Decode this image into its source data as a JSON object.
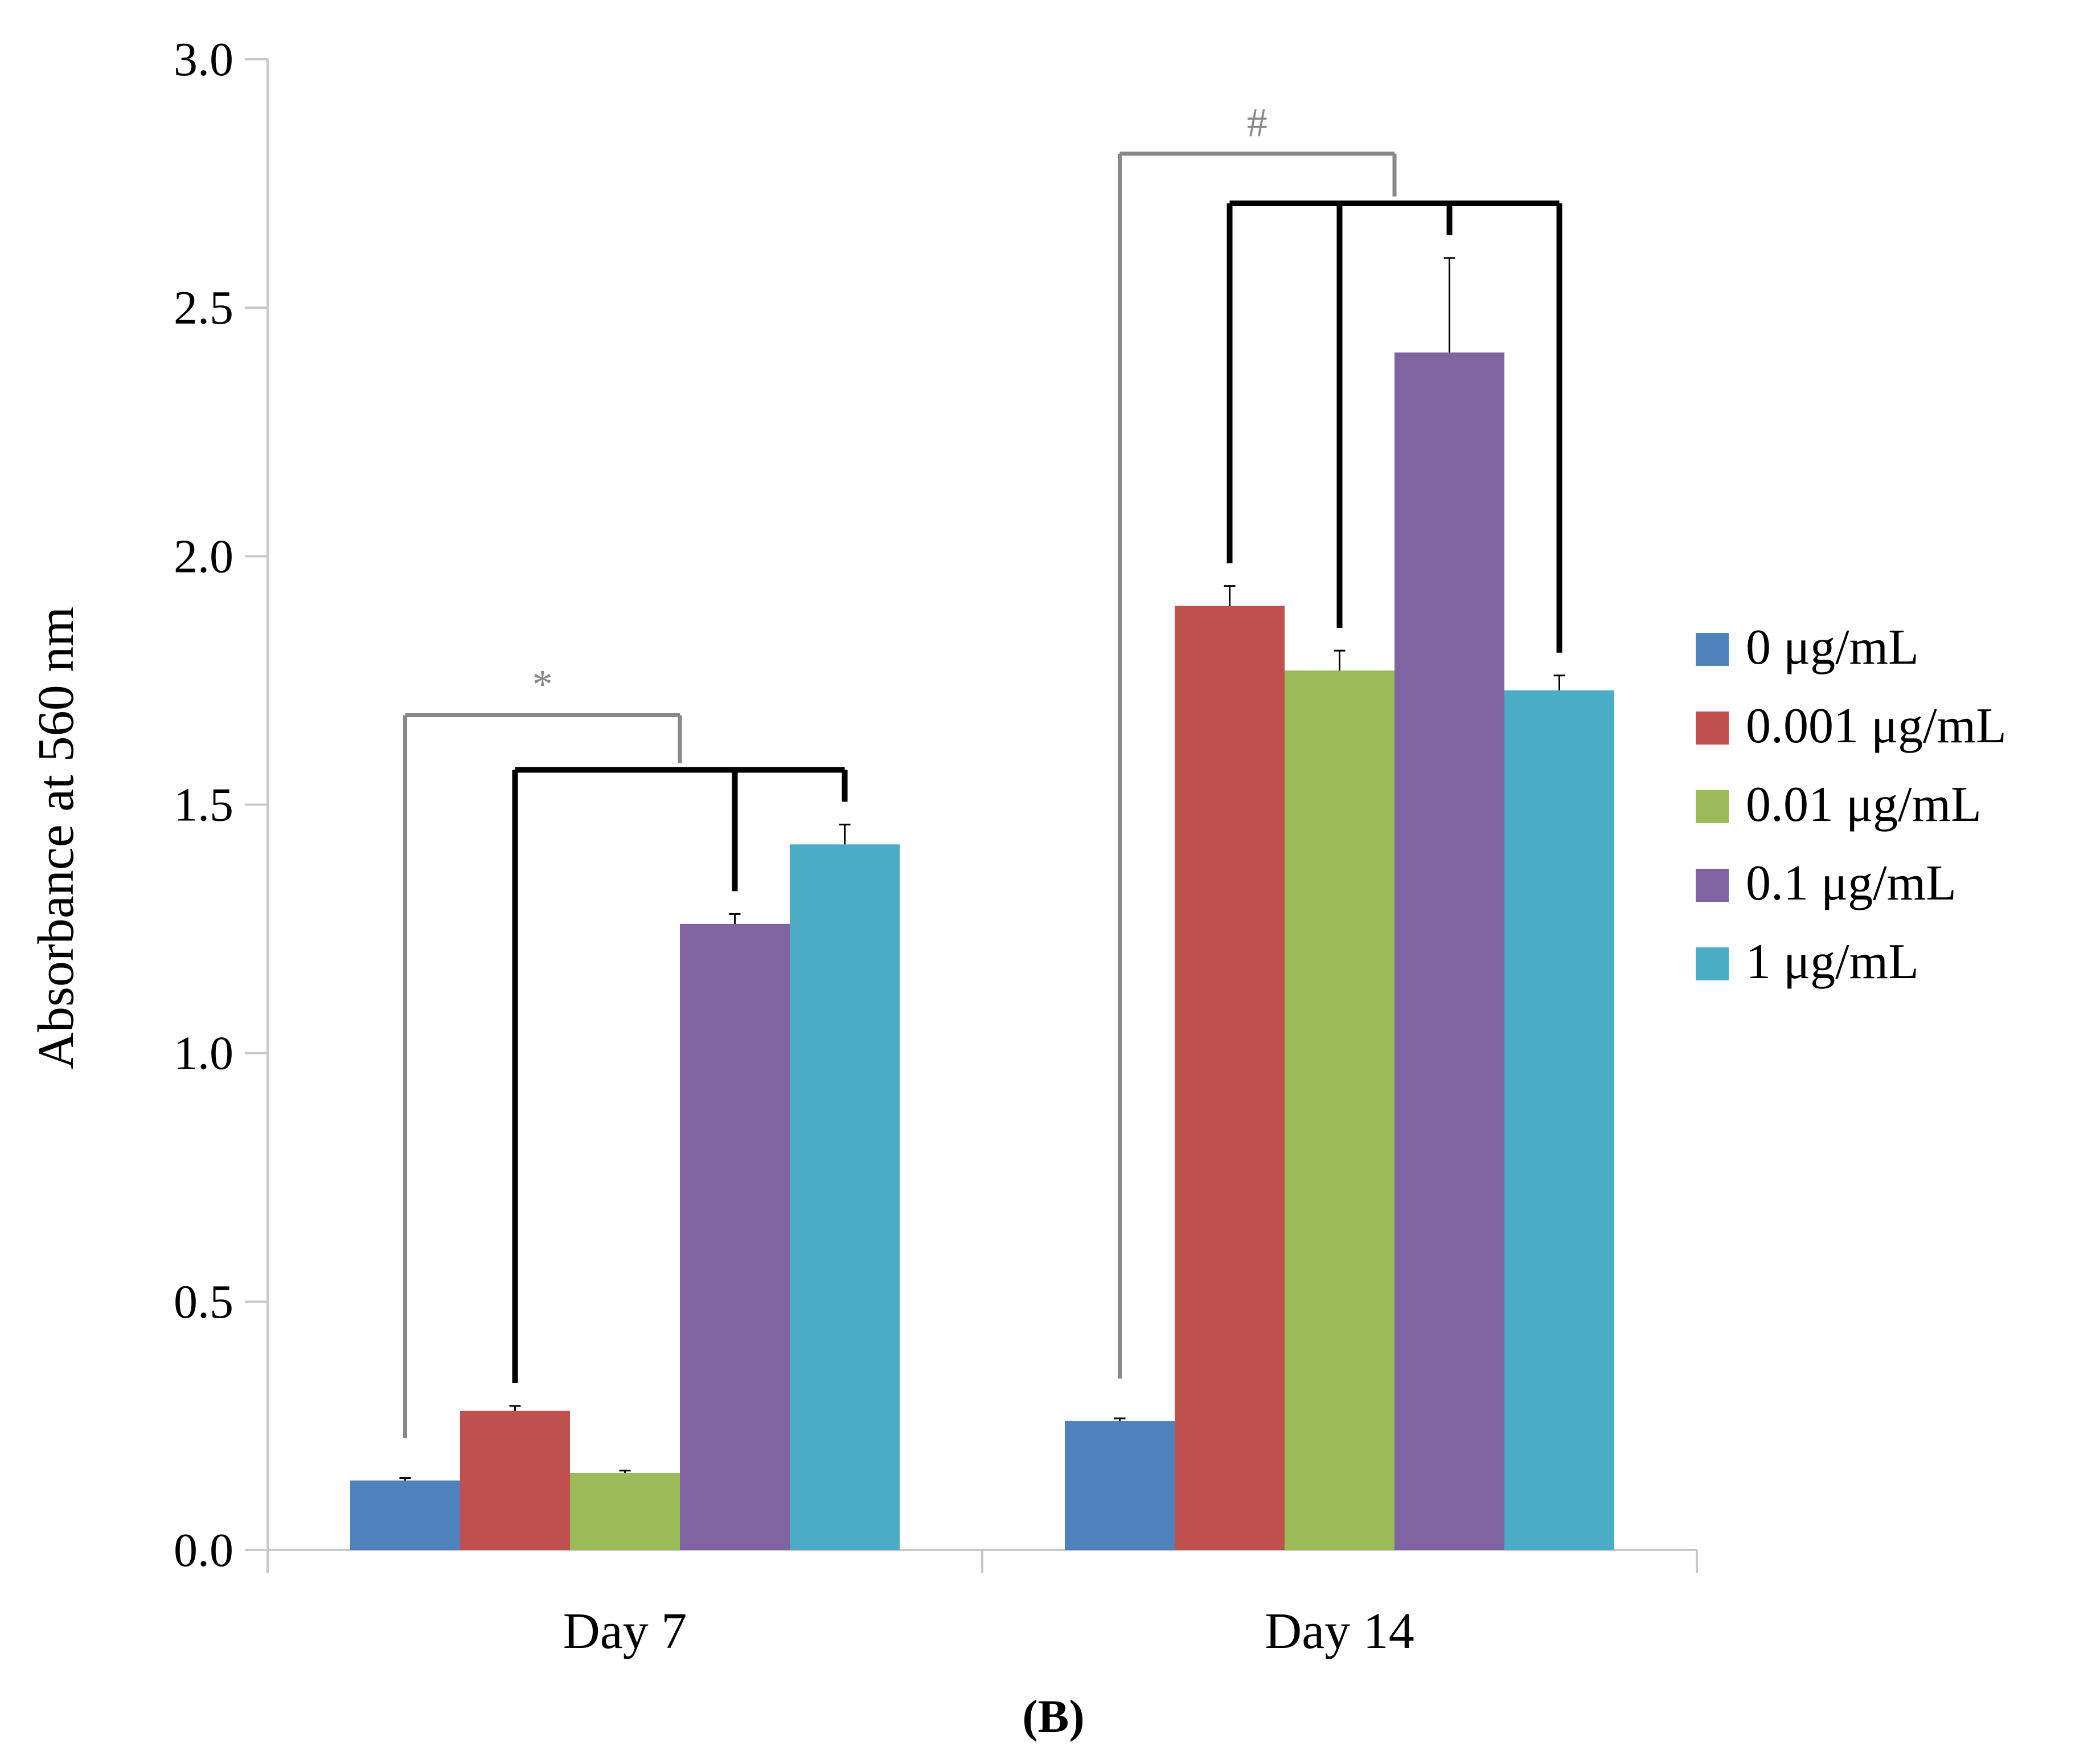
{
  "chart_data": {
    "type": "bar",
    "title": "",
    "panel_label": "(B)",
    "xlabel": "",
    "ylabel": "Absorbance at 560 nm",
    "ylim": [
      0,
      3.0
    ],
    "yticks": [
      "0.0",
      "0.5",
      "1.0",
      "1.5",
      "2.0",
      "2.5",
      "3.0"
    ],
    "categories": [
      "Day 7",
      "Day 14"
    ],
    "legend_position": "right",
    "series": [
      {
        "name": "0 μg/mL",
        "color": "#4F81BD",
        "values": [
          0.14,
          0.26
        ],
        "errors": [
          0.005,
          0.005
        ]
      },
      {
        "name": "0.001 μg/mL",
        "color": "#C0504D",
        "values": [
          0.28,
          1.9
        ],
        "errors": [
          0.01,
          0.04
        ]
      },
      {
        "name": "0.01 μg/mL",
        "color": "#9BBB59",
        "values": [
          0.155,
          1.77
        ],
        "errors": [
          0.005,
          0.04
        ]
      },
      {
        "name": "0.1 μg/mL",
        "color": "#8064A2",
        "values": [
          1.26,
          2.41
        ],
        "errors": [
          0.02,
          0.19
        ]
      },
      {
        "name": "1 μg/mL",
        "color": "#4BACC6",
        "values": [
          1.42,
          1.73
        ],
        "errors": [
          0.04,
          0.03
        ]
      }
    ],
    "significance": [
      {
        "category": "Day 7",
        "label": "*",
        "color": "#888888"
      },
      {
        "category": "Day 14",
        "label": "#",
        "color": "#888888"
      }
    ]
  }
}
